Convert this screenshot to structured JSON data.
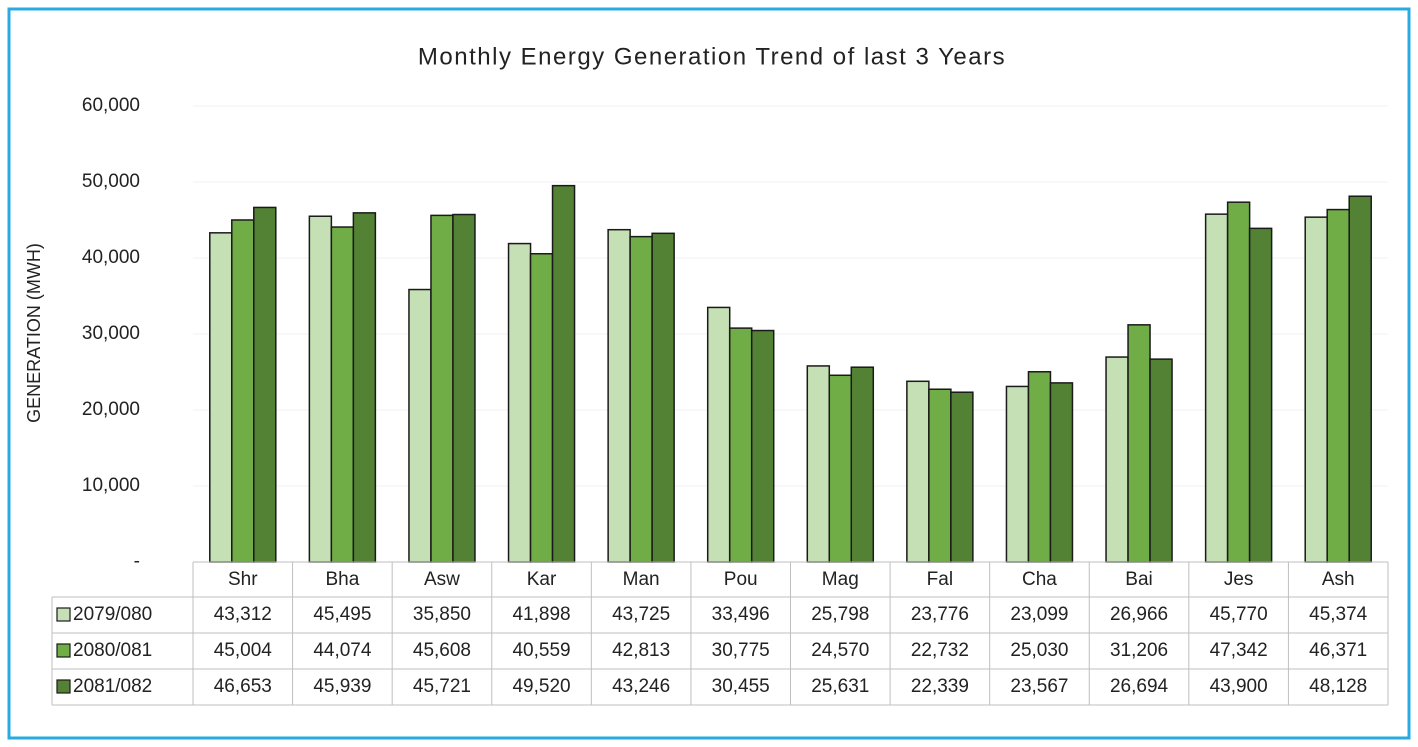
{
  "chart_data": {
    "type": "bar",
    "title": "Monthly Energy Generation Trend of last 3 Years",
    "y_label": "GENERATION (MWH)",
    "categories": [
      "Shr",
      "Bha",
      "Asw",
      "Kar",
      "Man",
      "Pou",
      "Mag",
      "Fal",
      "Cha",
      "Bai",
      "Jes",
      "Ash"
    ],
    "series": [
      {
        "name": "2079/080",
        "color": "#c5e0b4",
        "values": [
          43312,
          45495,
          35850,
          41898,
          43725,
          33496,
          25798,
          23776,
          23099,
          26966,
          45770,
          45374
        ],
        "value_labels": [
          "43,312",
          "45,495",
          "35,850",
          "41,898",
          "43,725",
          "33,496",
          "25,798",
          "23,776",
          "23,099",
          "26,966",
          "45,770",
          "45,374"
        ]
      },
      {
        "name": "2080/081",
        "color": "#70ad47",
        "values": [
          45004,
          44074,
          45608,
          40559,
          42813,
          30775,
          24570,
          22732,
          25030,
          31206,
          47342,
          46371
        ],
        "value_labels": [
          "45,004",
          "44,074",
          "45,608",
          "40,559",
          "42,813",
          "30,775",
          "24,570",
          "22,732",
          "25,030",
          "31,206",
          "47,342",
          "46,371"
        ]
      },
      {
        "name": "2081/082",
        "color": "#548235",
        "values": [
          46653,
          45939,
          45721,
          49520,
          43246,
          30455,
          25631,
          22339,
          23567,
          26694,
          43900,
          48128
        ],
        "value_labels": [
          "46,653",
          "45,939",
          "45,721",
          "49,520",
          "43,246",
          "30,455",
          "25,631",
          "22,339",
          "23,567",
          "26,694",
          "43,900",
          "48,128"
        ]
      }
    ],
    "ylim": [
      0,
      60000
    ],
    "yticks": [
      {
        "value": 0,
        "label": "-"
      },
      {
        "value": 10000,
        "label": "10,000"
      },
      {
        "value": 20000,
        "label": "20,000"
      },
      {
        "value": 30000,
        "label": "30,000"
      },
      {
        "value": 40000,
        "label": "40,000"
      },
      {
        "value": 50000,
        "label": "50,000"
      },
      {
        "value": 60000,
        "label": "60,000"
      }
    ],
    "grid": true
  }
}
